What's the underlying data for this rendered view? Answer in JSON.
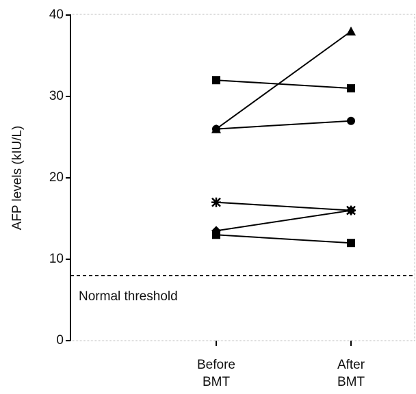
{
  "chart_data": {
    "type": "line",
    "y_label": "AFP levels (kIU/L)",
    "categories": [
      "Before BMT",
      "After BMT"
    ],
    "color": "#000000",
    "series": [
      {
        "marker": "square",
        "values": [
          32,
          31
        ]
      },
      {
        "marker": "triangle",
        "values": [
          26,
          38
        ]
      },
      {
        "marker": "circle",
        "values": [
          26,
          27
        ]
      },
      {
        "marker": "asterisk",
        "values": [
          17,
          16
        ]
      },
      {
        "marker": "diamond",
        "values": [
          13.5,
          16
        ]
      },
      {
        "marker": "square",
        "values": [
          13,
          12
        ]
      }
    ],
    "ylim": [
      0,
      40
    ],
    "yticks": [
      0,
      10,
      20,
      30,
      40
    ],
    "threshold": 8,
    "threshold_label": "Normal threshold"
  }
}
